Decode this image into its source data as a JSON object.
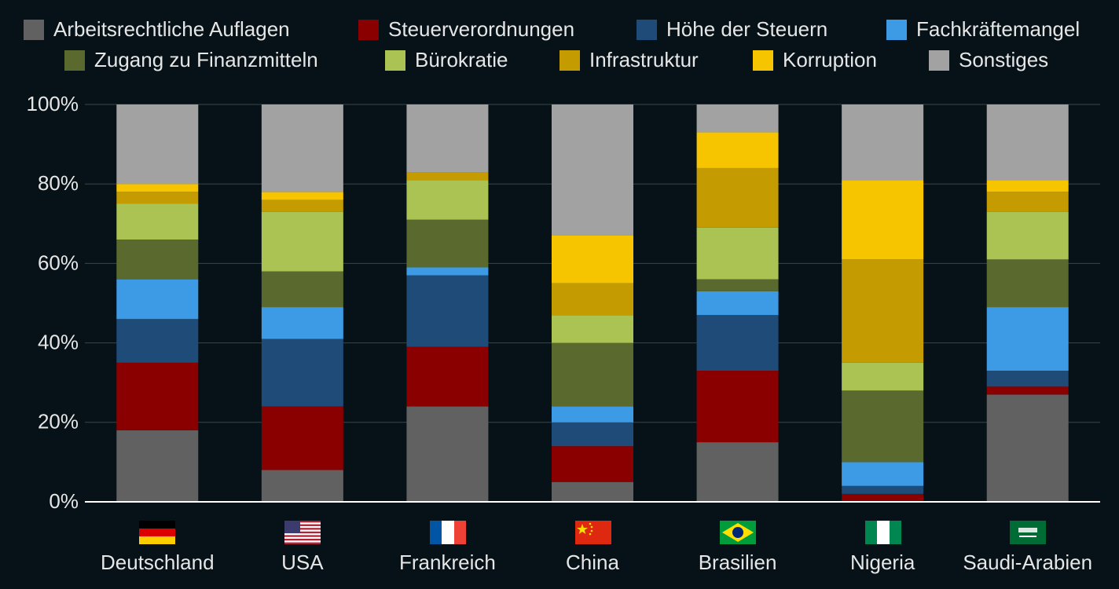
{
  "chart_data": {
    "type": "stacked-bar",
    "categories": [
      "Deutschland",
      "USA",
      "Frankreich",
      "China",
      "Brasilien",
      "Nigeria",
      "Saudi-Arabien"
    ],
    "series": [
      {
        "name": "Arbeitsrechtliche Auflagen",
        "color": "#616161",
        "values": [
          18,
          8,
          24,
          5,
          15,
          0,
          27
        ]
      },
      {
        "name": "Steuerverordnungen",
        "color": "#8a0000",
        "values": [
          17,
          16,
          15,
          9,
          18,
          2,
          2
        ]
      },
      {
        "name": "Höhe der Steuern",
        "color": "#1f4b78",
        "values": [
          11,
          17,
          18,
          6,
          14,
          2,
          4
        ]
      },
      {
        "name": "Fachkräftemangel",
        "color": "#3d9be6",
        "values": [
          10,
          8,
          2,
          4,
          6,
          6,
          16
        ]
      },
      {
        "name": "Zugang zu Finanzmitteln",
        "color": "#5a6a2e",
        "values": [
          10,
          9,
          12,
          16,
          3,
          18,
          12
        ]
      },
      {
        "name": "Bürokratie",
        "color": "#aac352",
        "values": [
          9,
          15,
          10,
          7,
          13,
          7,
          12
        ]
      },
      {
        "name": "Infrastruktur",
        "color": "#c49b00",
        "values": [
          3,
          3,
          2,
          8,
          15,
          26,
          5
        ]
      },
      {
        "name": "Korruption",
        "color": "#f6c500",
        "values": [
          2,
          2,
          0,
          12,
          9,
          20,
          3
        ]
      },
      {
        "name": "Sonstiges",
        "color": "#a2a2a2",
        "values": [
          20,
          22,
          17,
          33,
          7,
          19,
          19
        ]
      }
    ],
    "ylim": [
      0,
      100
    ],
    "yticks": [
      {
        "value": 0,
        "label": "0%"
      },
      {
        "value": 20,
        "label": "20%"
      },
      {
        "value": 40,
        "label": "40%"
      },
      {
        "value": 60,
        "label": "60%"
      },
      {
        "value": 80,
        "label": "80%"
      },
      {
        "value": 100,
        "label": "100%"
      }
    ],
    "grid": true
  }
}
